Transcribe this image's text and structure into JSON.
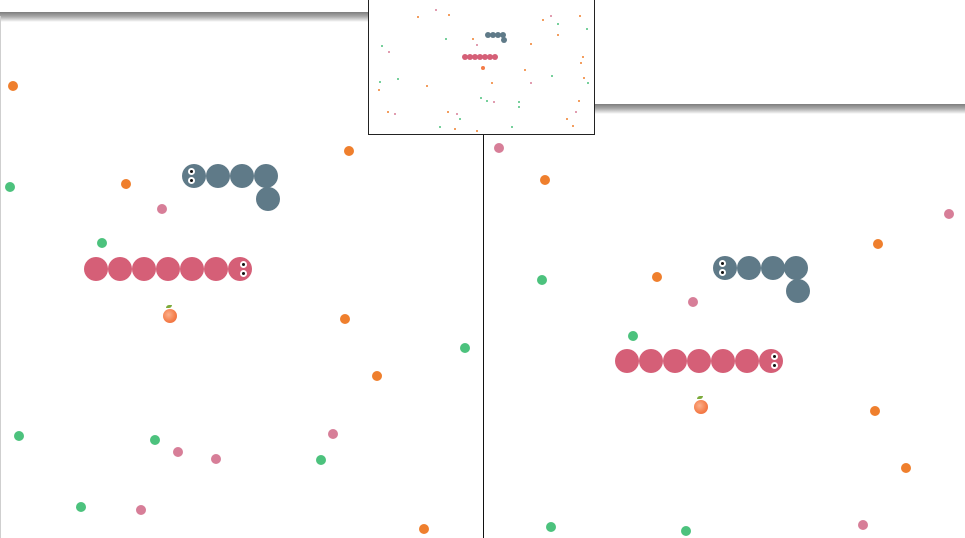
{
  "colors": {
    "food_orange": "#ef7f2d",
    "food_green": "#4cc27d",
    "food_pink": "#d77e98",
    "snake_player": "#d55f77",
    "snake_enemy": "#5f7a88",
    "peach": "#f47c48"
  },
  "game": {
    "mode": "split-screen",
    "views": [
      "left-player-view",
      "right-player-view",
      "minimap"
    ],
    "snakes": [
      {
        "id": "player-snake",
        "color": "snake_player",
        "segments": 7
      },
      {
        "id": "enemy-snake",
        "color": "snake_enemy",
        "segments": 5
      }
    ],
    "pickups": [
      "peach-icon"
    ]
  }
}
